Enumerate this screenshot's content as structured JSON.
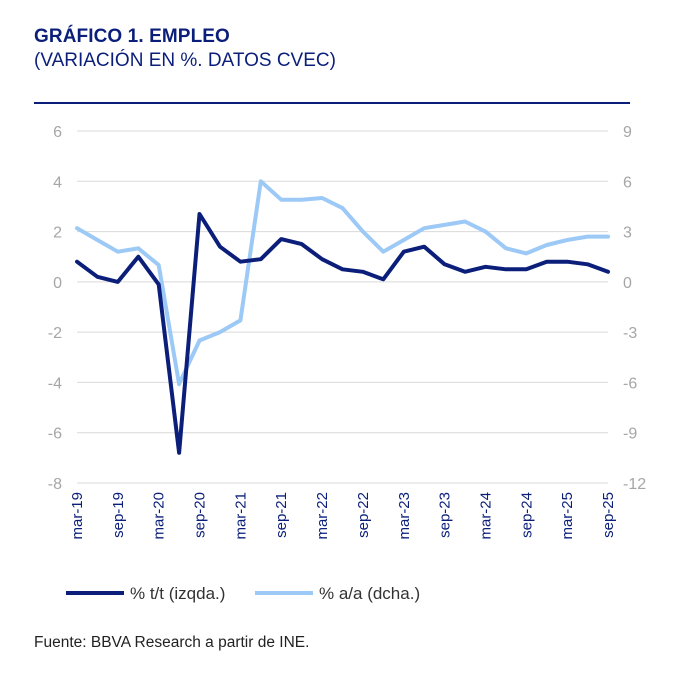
{
  "header": {
    "title": "GRÁFICO 1. EMPLEO",
    "subtitle": "(VARIACIÓN EN %. DATOS CVEC)"
  },
  "footer": {
    "source": "Fuente: BBVA Research a partir de INE."
  },
  "colors": {
    "series_qq": "#0b1f7a",
    "series_yy": "#9cc9f5",
    "grid": "#d9d9d9",
    "axis_text": "#a6a6a6",
    "xtick_text": "#0b1f7a"
  },
  "chart_data": {
    "type": "line",
    "title": "GRÁFICO 1. EMPLEO",
    "x": [
      "mar-19",
      "jun-19",
      "sep-19",
      "dic-19",
      "mar-20",
      "jun-20",
      "sep-20",
      "dic-20",
      "mar-21",
      "jun-21",
      "sep-21",
      "dic-21",
      "mar-22",
      "jun-22",
      "sep-22",
      "dic-22",
      "mar-23",
      "jun-23",
      "sep-23",
      "dic-23",
      "mar-24",
      "jun-24",
      "sep-24",
      "dic-24",
      "mar-25",
      "jun-25",
      "sep-25"
    ],
    "xtick_labels": [
      "mar-19",
      "sep-19",
      "mar-20",
      "sep-20",
      "mar-21",
      "sep-21",
      "mar-22",
      "sep-22",
      "mar-23",
      "sep-23",
      "mar-24",
      "sep-24",
      "mar-25",
      "sep-25"
    ],
    "y_left": {
      "ylim": [
        -8,
        6
      ],
      "ticks": [
        "6",
        "4",
        "2",
        "0",
        "-2",
        "-4",
        "-6",
        "-8"
      ]
    },
    "y_right": {
      "ylim": [
        -12,
        9
      ],
      "ticks": [
        "9",
        "6",
        "3",
        "0",
        "-3",
        "-6",
        "-9",
        "-12"
      ]
    },
    "grid": true,
    "legend_position": "bottom-left",
    "series": [
      {
        "name": "% t/t (izqda.)",
        "axis": "left",
        "values": [
          0.8,
          0.2,
          0.0,
          1.0,
          -0.1,
          -6.8,
          2.7,
          1.4,
          0.8,
          0.9,
          1.7,
          1.5,
          0.9,
          0.5,
          0.4,
          0.1,
          1.2,
          1.4,
          0.7,
          0.4,
          0.6,
          0.5,
          0.5,
          0.8,
          0.8,
          0.7,
          0.4
        ]
      },
      {
        "name": "% a/a (dcha.)",
        "axis": "right",
        "values": [
          3.2,
          2.5,
          1.8,
          2.0,
          1.0,
          -6.1,
          -3.5,
          -3.0,
          -2.3,
          6.0,
          4.9,
          4.9,
          5.0,
          4.4,
          3.0,
          1.8,
          2.5,
          3.2,
          3.4,
          3.6,
          3.0,
          2.0,
          1.7,
          2.2,
          2.5,
          2.7,
          2.7
        ]
      }
    ]
  }
}
